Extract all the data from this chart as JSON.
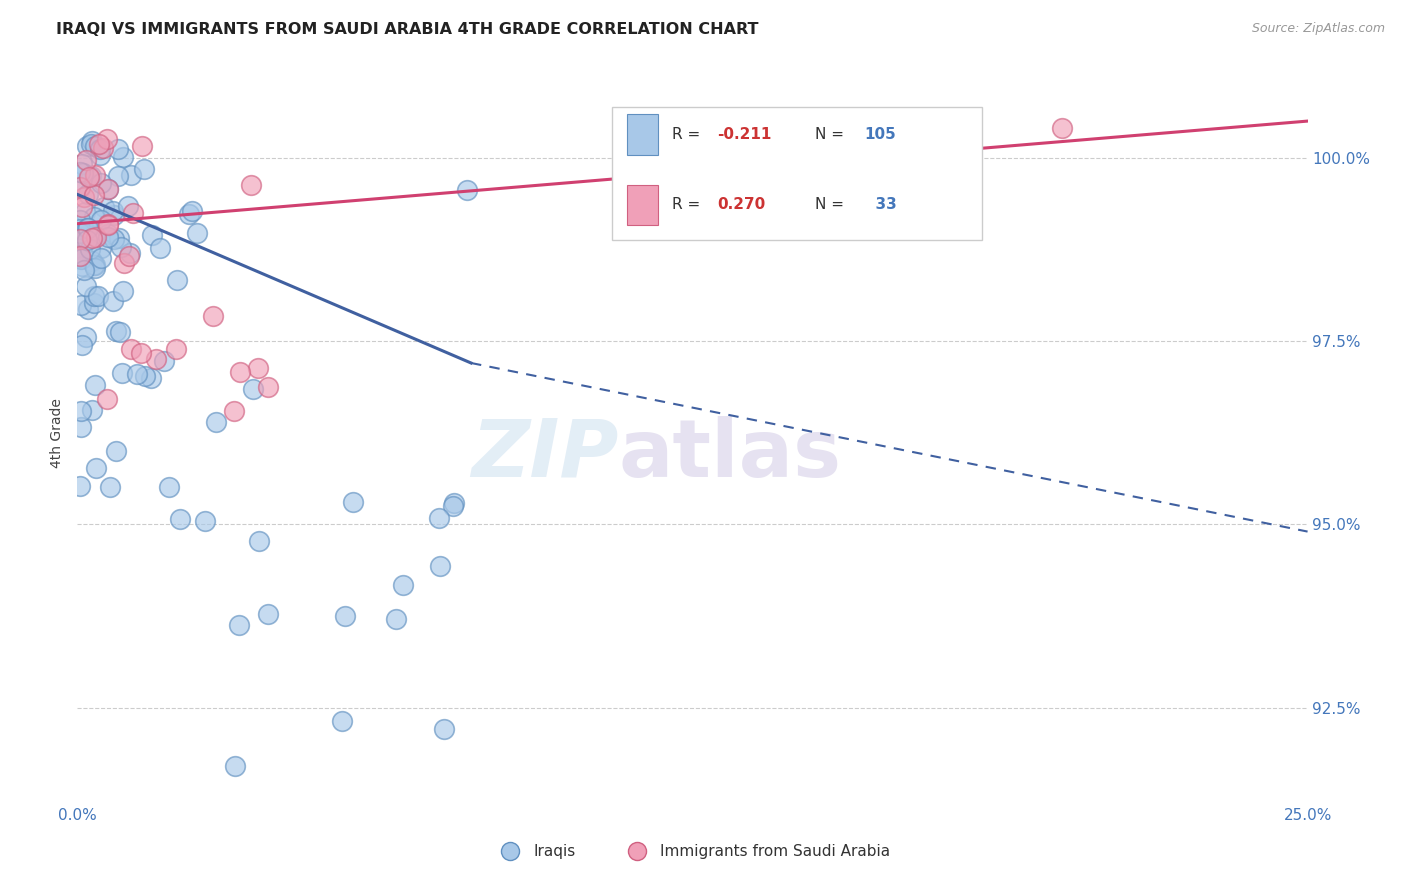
{
  "title": "IRAQI VS IMMIGRANTS FROM SAUDI ARABIA 4TH GRADE CORRELATION CHART",
  "source": "Source: ZipAtlas.com",
  "ylabel": "4th Grade",
  "xmin": 0.0,
  "xmax": 25.0,
  "ymin": 91.2,
  "ymax": 101.3,
  "legend_label1": "Iraqis",
  "legend_label2": "Immigrants from Saudi Arabia",
  "R1": -0.211,
  "N1": 105,
  "R2": 0.27,
  "N2": 33,
  "color_blue": "#a8c8e8",
  "color_pink": "#f0a0b8",
  "color_blue_edge": "#6090c0",
  "color_pink_edge": "#d06080",
  "trend_blue": "#4060a0",
  "trend_pink": "#d04070",
  "yticks": [
    92.5,
    95.0,
    97.5,
    100.0
  ],
  "ytick_labels": [
    "92.5%",
    "95.0%",
    "97.5%",
    "100.0%"
  ],
  "blue_line_x0": 0.0,
  "blue_line_y0": 99.5,
  "blue_line_x1": 8.0,
  "blue_line_y1": 97.2,
  "blue_dash_x1": 25.0,
  "blue_dash_y1": 94.9,
  "pink_line_x0": 0.0,
  "pink_line_y0": 99.1,
  "pink_line_x1": 25.0,
  "pink_line_y1": 100.5
}
